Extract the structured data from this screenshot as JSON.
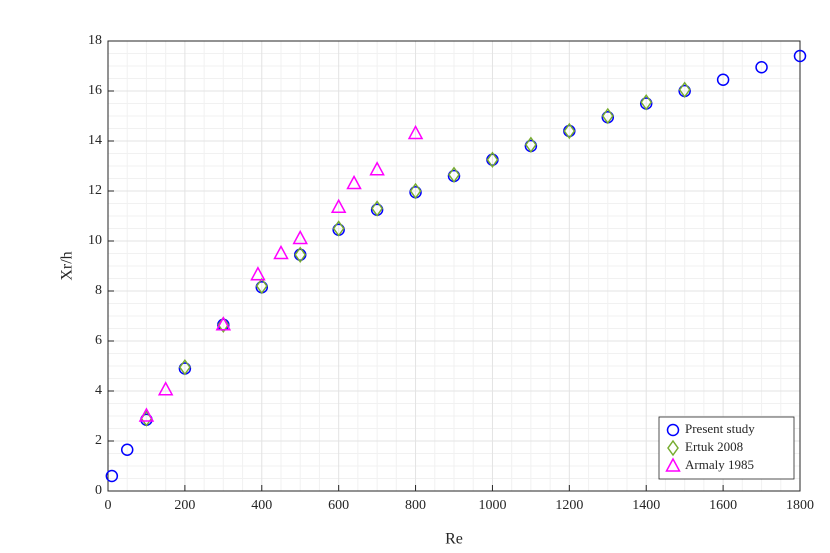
{
  "chart_data": {
    "type": "scatter",
    "x_label": "Re",
    "y_label": "Xr/h",
    "xlim": [
      0,
      1800
    ],
    "xticks": [
      0,
      200,
      400,
      600,
      800,
      1000,
      1200,
      1400,
      1600,
      1800
    ],
    "ylim": [
      0,
      18
    ],
    "yticks": [
      0,
      2,
      4,
      6,
      8,
      10,
      12,
      14,
      16,
      18
    ],
    "grid": true,
    "minor_grid": true,
    "legend": "lower-right",
    "series": [
      {
        "name": "Present study",
        "color": "#0000ff",
        "marker": "circle",
        "x": [
          10,
          50,
          100,
          200,
          300,
          400,
          500,
          600,
          700,
          800,
          900,
          1000,
          1100,
          1200,
          1300,
          1400,
          1500,
          1600,
          1700,
          1800
        ],
        "values": [
          0.6,
          1.65,
          2.85,
          4.9,
          6.65,
          8.15,
          9.45,
          10.45,
          11.25,
          11.95,
          12.6,
          13.25,
          13.8,
          14.4,
          14.95,
          15.5,
          16.0,
          16.45,
          16.95,
          17.4
        ]
      },
      {
        "name": "Ertuk 2008",
        "color": "#77ac30",
        "marker": "diamond",
        "x": [
          100,
          200,
          300,
          400,
          500,
          600,
          700,
          800,
          900,
          1000,
          1100,
          1200,
          1300,
          1400,
          1500
        ],
        "values": [
          2.9,
          4.95,
          6.65,
          8.2,
          9.45,
          10.5,
          11.3,
          12.0,
          12.65,
          13.25,
          13.85,
          14.4,
          15.0,
          15.55,
          16.05
        ]
      },
      {
        "name": "Armaly 1985",
        "color": "#ff00ff",
        "marker": "triangle",
        "x": [
          100,
          150,
          300,
          390,
          450,
          500,
          600,
          640,
          700,
          800
        ],
        "values": [
          3.0,
          4.05,
          6.65,
          8.65,
          9.5,
          10.1,
          11.35,
          12.3,
          12.85,
          14.3
        ]
      }
    ]
  }
}
